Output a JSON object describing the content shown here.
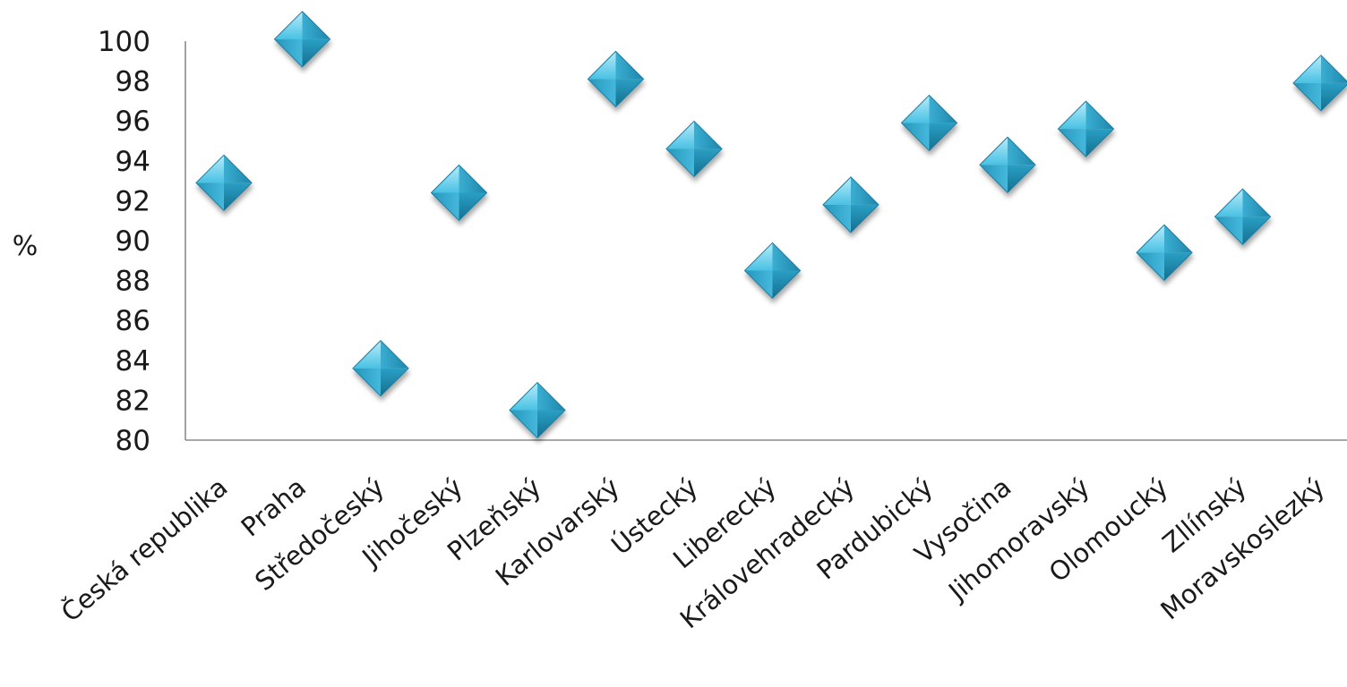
{
  "chart_data": {
    "type": "scatter",
    "title": "",
    "xlabel": "",
    "ylabel": "%",
    "ylim": [
      80,
      100
    ],
    "yticks": [
      "80",
      "82",
      "84",
      "86",
      "88",
      "90",
      "92",
      "94",
      "96",
      "98",
      "100"
    ],
    "grid": false,
    "legend": "none",
    "marker": "diamond",
    "marker_color": "#2aa5c8",
    "categories": [
      "Česká republika",
      "Praha",
      "Středočeský",
      "Jihočeský",
      "Plzeňský",
      "Karlovarský",
      "Ústecký",
      "Liberecký",
      "Královehradecký",
      "Pardubický",
      "Vysočina",
      "Jihomoravský",
      "Olomoucký",
      "Zllínský",
      "Moravskoslezký"
    ],
    "values": [
      92.9,
      100.1,
      83.6,
      92.4,
      81.5,
      98.1,
      94.6,
      88.5,
      91.8,
      95.9,
      93.8,
      95.6,
      89.4,
      91.2,
      97.9
    ]
  }
}
